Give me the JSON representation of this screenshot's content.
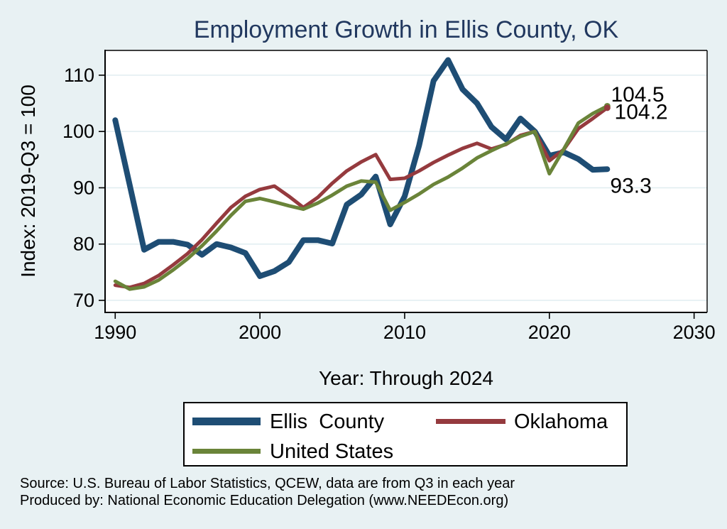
{
  "page": {
    "background_color": "#e8f1f3"
  },
  "chart_data": {
    "type": "line",
    "title": "Employment Growth in Ellis County, OK",
    "title_color": "#21385f",
    "xlabel": "Year: Through 2024",
    "ylabel": "Index: 2019-Q3 = 100",
    "x": [
      1990,
      1991,
      1992,
      1993,
      1994,
      1995,
      1996,
      1997,
      1998,
      1999,
      2000,
      2001,
      2002,
      2003,
      2004,
      2005,
      2006,
      2007,
      2008,
      2009,
      2010,
      2011,
      2012,
      2013,
      2014,
      2015,
      2016,
      2017,
      2018,
      2019,
      2020,
      2021,
      2022,
      2023,
      2024
    ],
    "series": [
      {
        "name": "Ellis  County",
        "color": "#1e4d74",
        "line_width": 8,
        "end_marker": false,
        "values": [
          102,
          90.5,
          79,
          80.4,
          80.4,
          79.9,
          78.1,
          80,
          79.4,
          78.4,
          74.3,
          75.2,
          76.8,
          80.7,
          80.7,
          80.1,
          87,
          88.8,
          92,
          83.5,
          88.5,
          97.5,
          109,
          112.7,
          107.5,
          105,
          100.8,
          98.6,
          102.3,
          100,
          95.7,
          96.3,
          95.1,
          93.2,
          93.3
        ]
      },
      {
        "name": "Oklahoma",
        "color": "#953a3e",
        "line_width": 5,
        "end_marker": true,
        "values": [
          72.7,
          72.3,
          73,
          74.4,
          76.3,
          78.3,
          80.8,
          83.7,
          86.5,
          88.5,
          89.7,
          90.3,
          88.5,
          86.5,
          88.3,
          90.8,
          93,
          94.6,
          95.9,
          91.5,
          91.7,
          93,
          94.5,
          95.8,
          97,
          97.9,
          96.9,
          97.7,
          99.3,
          100,
          94.8,
          96.8,
          100.5,
          102.3,
          104.2
        ]
      },
      {
        "name": "United States",
        "color": "#6a8439",
        "line_width": 5,
        "end_marker": true,
        "values": [
          73.4,
          72,
          72.4,
          73.6,
          75.4,
          77.4,
          79.7,
          82.3,
          85.1,
          87.6,
          88.1,
          87.5,
          86.8,
          86.2,
          87.3,
          88.7,
          90.3,
          91.2,
          91,
          86,
          87.4,
          88.9,
          90.6,
          91.9,
          93.5,
          95.3,
          96.6,
          97.8,
          99.1,
          100,
          92.5,
          96.9,
          101.5,
          103.2,
          104.5
        ]
      }
    ],
    "xticks": [
      1990,
      2000,
      2010,
      2020,
      2030
    ],
    "yticks": [
      70,
      80,
      90,
      100,
      110
    ],
    "xlim": [
      1989.3,
      2030.9
    ],
    "ylim": [
      67.86,
      114.4
    ],
    "grid": "horizontal",
    "gridline_color": "#e0edf0",
    "plot_background": "#ffffff",
    "axis_color": "#000000",
    "legend_position": "bottom",
    "value_labels": [
      {
        "text": "104.5",
        "year": 2024.25,
        "value": 106.6
      },
      {
        "text": "104.2",
        "year": 2024.5,
        "value": 103.5
      },
      {
        "text": "93.3",
        "year": 2024.2,
        "value": 90.4
      }
    ]
  },
  "footer": {
    "source_line": "Source: U.S. Bureau of Labor Statistics, QCEW, data are from Q3 in each year",
    "produced_by_line": "Produced by: National Economic Education Delegation (www.NEEDEcon.org)"
  }
}
